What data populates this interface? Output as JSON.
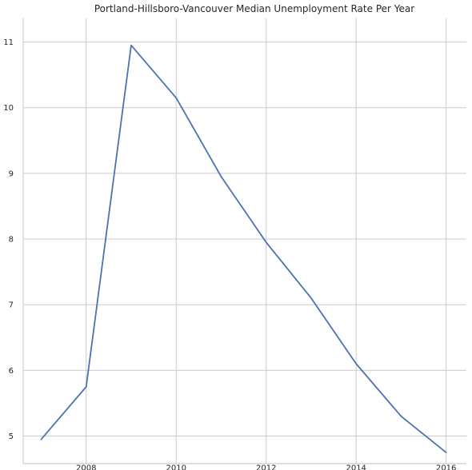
{
  "chart_data": {
    "type": "line",
    "title": "Portland-Hillsboro-Vancouver Median Unemployment Rate Per Year",
    "xlabel": "",
    "ylabel": "",
    "x": [
      2007,
      2008,
      2009,
      2010,
      2011,
      2012,
      2013,
      2014,
      2015,
      2016
    ],
    "series": [
      {
        "values": [
          4.95,
          5.75,
          10.95,
          10.15,
          8.95,
          7.95,
          7.1,
          6.1,
          5.3,
          4.75
        ]
      }
    ],
    "xlim": [
      2006.6,
      2016.45
    ],
    "ylim": [
      4.58,
      11.36
    ],
    "xticks": [
      2008,
      2010,
      2012,
      2014,
      2016
    ],
    "yticks": [
      5,
      6,
      7,
      8,
      9,
      10,
      11
    ],
    "grid": true,
    "colors": {
      "line": "#4c72b0",
      "grid": "#cccccc",
      "axis": "#cccccc",
      "text": "#262626"
    }
  }
}
